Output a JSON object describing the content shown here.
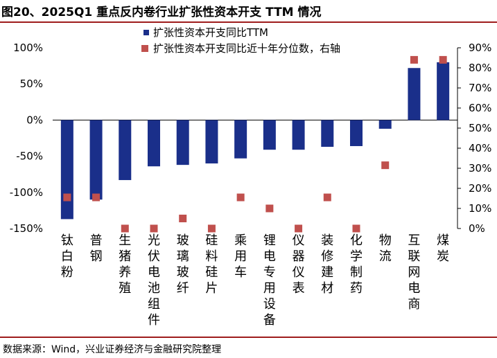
{
  "header": {
    "title": "图20、2025Q1 重点反内卷行业扩张性资本开支 TTM 情况"
  },
  "footer": {
    "source": "数据来源：Wind，兴业证券经济与金融研究院整理"
  },
  "colors": {
    "bar": "#1a2f8a",
    "marker": "#c0504d",
    "rule": "#9e1b1b"
  },
  "chart_data": {
    "type": "bar",
    "categories": [
      "钛白粉",
      "普钢",
      "生猪养殖",
      "光伏电池组件",
      "玻璃玻纤",
      "硅料硅片",
      "乘用车",
      "锂电专用设备",
      "仪器仪表",
      "装修建材",
      "化学制药",
      "物流",
      "互联网电商",
      "煤炭"
    ],
    "series": [
      {
        "name": "扩张性资本开支同比TTM",
        "type": "bar",
        "axis": "left",
        "unit": "%",
        "values": [
          -137,
          -110,
          -83,
          -64,
          -62,
          -60,
          -53,
          -41,
          -41,
          -37,
          -36,
          -12,
          72,
          80
        ]
      },
      {
        "name": "扩张性资本开支同比近十年分位数，右轴",
        "type": "scatter",
        "axis": "right",
        "unit": "%",
        "values": [
          15.5,
          15.5,
          0,
          0,
          5,
          0,
          15.5,
          10,
          0,
          15.5,
          0,
          31.5,
          84,
          84
        ]
      }
    ],
    "y_left": {
      "range": [
        -150,
        100
      ],
      "ticks": [
        -150,
        -100,
        -50,
        0,
        50,
        100
      ],
      "tick_labels": [
        "-150%",
        "-100%",
        "-50%",
        "0%",
        "50%",
        "100%"
      ]
    },
    "y_right": {
      "range": [
        0,
        90
      ],
      "ticks": [
        0,
        10,
        20,
        30,
        40,
        50,
        60,
        70,
        80,
        90
      ],
      "tick_labels": [
        "0%",
        "10%",
        "20%",
        "30%",
        "40%",
        "50%",
        "60%",
        "70%",
        "80%",
        "90%"
      ]
    },
    "legend": "top-center",
    "grid": false
  }
}
